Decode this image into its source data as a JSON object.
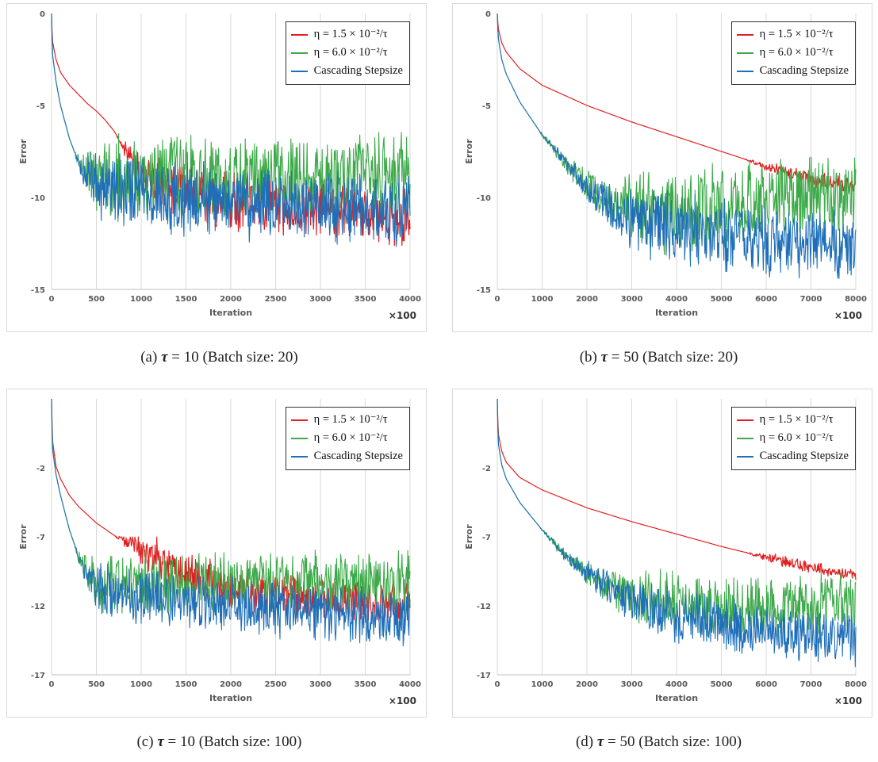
{
  "colors": {
    "series_red": "#e02020",
    "series_green": "#3daa4a",
    "series_blue": "#1f6fb8",
    "grid": "#d9d9d9",
    "axis_text": "#595959"
  },
  "legend_labels": [
    "η = 1.5 × 10⁻²/τ",
    "η = 6.0 × 10⁻²/τ",
    "Cascading Stepsize"
  ],
  "captions": [
    {
      "prefix": "(a) ",
      "tau": "τ",
      "rest": " = 10 (Batch size:  20)"
    },
    {
      "prefix": "(b) ",
      "tau": "τ",
      "rest": " = 50 (Batch size:  20)"
    },
    {
      "prefix": "(c) ",
      "tau": "τ",
      "rest": " = 10 (Batch size:  100)"
    },
    {
      "prefix": "(d) ",
      "tau": "τ",
      "rest": " = 50 (Batch size:  100)"
    }
  ],
  "chart_data": [
    {
      "type": "line",
      "xlabel": "Iteration",
      "ylabel": "Error",
      "x_multiplier_label": "×100",
      "xlim": [
        0,
        4000
      ],
      "ylim": [
        -15,
        0
      ],
      "xticks": [
        0,
        500,
        1000,
        1500,
        2000,
        2500,
        3000,
        3500,
        4000
      ],
      "yticks": [
        0,
        -5,
        -10,
        -15
      ],
      "series": [
        {
          "name": "η = 1.5 × 10⁻²/τ",
          "x": [
            0,
            10,
            50,
            100,
            200,
            300,
            400,
            500,
            600,
            700,
            800,
            1000,
            1500,
            2000,
            2500,
            3000,
            3500,
            4000
          ],
          "values": [
            0,
            -1.5,
            -2.5,
            -3.2,
            -3.9,
            -4.4,
            -4.9,
            -5.3,
            -5.8,
            -6.4,
            -7.2,
            -8.8,
            -9.8,
            -10.2,
            -10.4,
            -10.6,
            -10.9,
            -11.1
          ]
        },
        {
          "name": "η = 6.0 × 10⁻²/τ",
          "x": [
            0,
            10,
            50,
            100,
            200,
            300,
            400,
            500,
            800,
            1000,
            1500,
            2000,
            2500,
            3000,
            3500,
            4000
          ],
          "values": [
            0,
            -2.2,
            -3.7,
            -5.0,
            -6.8,
            -8.1,
            -8.7,
            -8.9,
            -8.9,
            -8.9,
            -8.8,
            -8.8,
            -8.8,
            -8.8,
            -8.8,
            -8.7
          ]
        },
        {
          "name": "Cascading Stepsize",
          "x": [
            0,
            10,
            50,
            100,
            200,
            300,
            400,
            500,
            800,
            1000,
            1500,
            2000,
            2500,
            3000,
            3500,
            4000
          ],
          "values": [
            0,
            -2.2,
            -3.7,
            -5.0,
            -6.8,
            -8.1,
            -8.9,
            -9.2,
            -9.6,
            -9.8,
            -10.1,
            -10.3,
            -10.4,
            -10.5,
            -10.6,
            -10.6
          ]
        }
      ]
    },
    {
      "type": "line",
      "xlabel": "Iteration",
      "ylabel": "Error",
      "x_multiplier_label": "×100",
      "xlim": [
        0,
        8000
      ],
      "ylim": [
        -15,
        0
      ],
      "xticks": [
        0,
        1000,
        2000,
        3000,
        4000,
        5000,
        6000,
        7000,
        8000
      ],
      "yticks": [
        0,
        -5,
        -10,
        -15
      ],
      "series": [
        {
          "name": "η = 1.5 × 10⁻²/τ",
          "x": [
            0,
            20,
            100,
            200,
            500,
            1000,
            2000,
            3000,
            4000,
            5000,
            6000,
            7000,
            8000
          ],
          "values": [
            0,
            -0.8,
            -1.6,
            -2.1,
            -3.0,
            -3.9,
            -5.0,
            -5.9,
            -6.7,
            -7.5,
            -8.3,
            -9.0,
            -9.4
          ]
        },
        {
          "name": "η = 6.0 × 10⁻²/τ",
          "x": [
            0,
            20,
            100,
            200,
            500,
            1000,
            1500,
            2000,
            2500,
            3000,
            4000,
            5000,
            6000,
            7000,
            8000
          ],
          "values": [
            0,
            -1.3,
            -2.5,
            -3.3,
            -4.8,
            -6.6,
            -8.0,
            -9.4,
            -10.3,
            -10.6,
            -10.7,
            -10.5,
            -10.1,
            -9.9,
            -9.8
          ]
        },
        {
          "name": "Cascading Stepsize",
          "x": [
            0,
            20,
            100,
            200,
            500,
            1000,
            1500,
            2000,
            2500,
            3000,
            4000,
            5000,
            6000,
            7000,
            8000
          ],
          "values": [
            0,
            -1.3,
            -2.5,
            -3.3,
            -4.8,
            -6.6,
            -8.0,
            -9.4,
            -10.5,
            -11.2,
            -11.8,
            -12.2,
            -12.4,
            -12.5,
            -12.6
          ]
        }
      ]
    },
    {
      "type": "line",
      "xlabel": "Iteration",
      "ylabel": "Error",
      "x_multiplier_label": "×100",
      "xlim": [
        0,
        4000
      ],
      "ylim": [
        -17,
        3
      ],
      "xticks": [
        0,
        500,
        1000,
        1500,
        2000,
        2500,
        3000,
        3500,
        4000
      ],
      "yticks": [
        -2,
        -7,
        -12,
        -17
      ],
      "series": [
        {
          "name": "η = 1.5 × 10⁻²/τ",
          "x": [
            0,
            10,
            50,
            100,
            200,
            300,
            400,
            500,
            700,
            1000,
            1500,
            2000,
            2500,
            3000,
            3500,
            4000
          ],
          "values": [
            3,
            0,
            -1.9,
            -2.8,
            -4.0,
            -4.8,
            -5.4,
            -6.0,
            -6.9,
            -8.0,
            -9.7,
            -10.6,
            -11.2,
            -11.5,
            -11.8,
            -12.0
          ]
        },
        {
          "name": "η = 6.0 × 10⁻²/τ",
          "x": [
            0,
            10,
            50,
            100,
            200,
            300,
            400,
            500,
            800,
            1000,
            1500,
            2000,
            2500,
            3000,
            3500,
            4000
          ],
          "values": [
            3,
            -0.6,
            -2.5,
            -4.0,
            -6.5,
            -8.4,
            -9.7,
            -10.3,
            -10.4,
            -10.4,
            -10.3,
            -10.3,
            -10.3,
            -10.3,
            -10.3,
            -10.2
          ]
        },
        {
          "name": "Cascading Stepsize",
          "x": [
            0,
            10,
            50,
            100,
            200,
            300,
            400,
            500,
            800,
            1000,
            1500,
            2000,
            2500,
            3000,
            3500,
            4000
          ],
          "values": [
            3,
            -0.6,
            -2.5,
            -4.0,
            -6.5,
            -8.4,
            -9.9,
            -10.6,
            -11.0,
            -11.3,
            -11.7,
            -12.0,
            -12.3,
            -12.5,
            -12.7,
            -12.9
          ]
        }
      ]
    },
    {
      "type": "line",
      "xlabel": "Iteration",
      "ylabel": "Error",
      "x_multiplier_label": "×100",
      "xlim": [
        0,
        8000
      ],
      "ylim": [
        -17,
        3
      ],
      "xticks": [
        0,
        1000,
        2000,
        3000,
        4000,
        5000,
        6000,
        7000,
        8000
      ],
      "yticks": [
        -2,
        -7,
        -12,
        -17
      ],
      "series": [
        {
          "name": "η = 1.5 × 10⁻²/τ",
          "x": [
            0,
            20,
            100,
            200,
            500,
            1000,
            2000,
            3000,
            4000,
            5000,
            6000,
            7000,
            8000
          ],
          "values": [
            3,
            0.5,
            -0.8,
            -1.6,
            -2.7,
            -3.6,
            -4.9,
            -5.9,
            -6.8,
            -7.7,
            -8.5,
            -9.2,
            -9.8
          ]
        },
        {
          "name": "η = 6.0 × 10⁻²/τ",
          "x": [
            0,
            20,
            100,
            200,
            500,
            1000,
            1500,
            2000,
            2500,
            3000,
            4000,
            5000,
            6000,
            7000,
            8000
          ],
          "values": [
            3,
            -0.2,
            -1.8,
            -2.8,
            -4.5,
            -6.5,
            -8.3,
            -9.6,
            -10.6,
            -11.2,
            -11.8,
            -12.1,
            -12.0,
            -11.9,
            -11.8
          ]
        },
        {
          "name": "Cascading Stepsize",
          "x": [
            0,
            20,
            100,
            200,
            500,
            1000,
            1500,
            2000,
            2500,
            3000,
            4000,
            5000,
            6000,
            7000,
            8000
          ],
          "values": [
            3,
            -0.2,
            -1.8,
            -2.8,
            -4.5,
            -6.5,
            -8.3,
            -9.6,
            -10.8,
            -11.7,
            -12.6,
            -13.3,
            -13.8,
            -14.1,
            -14.4
          ]
        }
      ]
    }
  ]
}
